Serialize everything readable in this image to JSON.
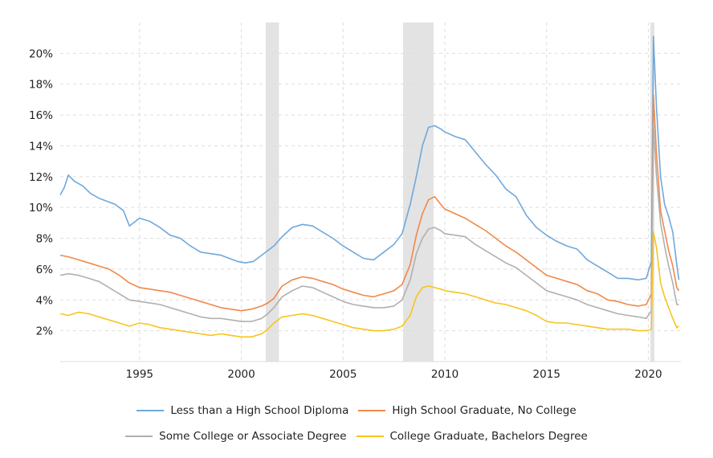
{
  "chart_data": {
    "type": "line",
    "title": "",
    "xlabel": "",
    "ylabel": "",
    "xlim": [
      1991.1,
      2021.6
    ],
    "ylim": [
      0,
      22
    ],
    "grid": true,
    "legend_position": "bottom",
    "x_ticks": [
      1995,
      2000,
      2005,
      2010,
      2015,
      2020
    ],
    "y_ticks": [
      2,
      4,
      6,
      8,
      10,
      12,
      14,
      16,
      18,
      20
    ],
    "y_tick_labels": [
      "2%",
      "4%",
      "6%",
      "8%",
      "10%",
      "12%",
      "14%",
      "16%",
      "18%",
      "20%"
    ],
    "x_tick_labels": [
      "1995",
      "2000",
      "2005",
      "2010",
      "2015",
      "2020"
    ],
    "recessions": [
      [
        2001.2,
        2001.85
      ],
      [
        2007.95,
        2009.45
      ],
      [
        2020.1,
        2020.3
      ]
    ],
    "series": [
      {
        "name": "Less than a High School Diploma",
        "color": "#6fa8dc",
        "x": [
          1991.1,
          1991.3,
          1991.5,
          1991.8,
          1992.2,
          1992.6,
          1993.0,
          1993.4,
          1993.8,
          1994.2,
          1994.5,
          1994.8,
          1995.0,
          1995.5,
          1996.0,
          1996.5,
          1997.0,
          1997.5,
          1998.0,
          1998.5,
          1999.0,
          1999.4,
          1999.8,
          2000.2,
          2000.6,
          2001.0,
          2001.3,
          2001.6,
          2002.0,
          2002.5,
          2003.0,
          2003.5,
          2004.0,
          2004.5,
          2005.0,
          2005.5,
          2006.0,
          2006.5,
          2007.0,
          2007.5,
          2007.9,
          2008.3,
          2008.6,
          2008.9,
          2009.2,
          2009.5,
          2009.8,
          2010.0,
          2010.5,
          2011.0,
          2011.5,
          2012.0,
          2012.5,
          2013.0,
          2013.5,
          2014.0,
          2014.5,
          2015.0,
          2015.5,
          2016.0,
          2016.5,
          2017.0,
          2017.5,
          2018.0,
          2018.5,
          2019.0,
          2019.5,
          2019.9,
          2020.15,
          2020.25,
          2020.4,
          2020.6,
          2020.8,
          2021.0,
          2021.2,
          2021.4,
          2021.5
        ],
        "y": [
          10.8,
          11.3,
          12.1,
          11.7,
          11.4,
          10.9,
          10.6,
          10.4,
          10.2,
          9.8,
          8.8,
          9.1,
          9.3,
          9.1,
          8.7,
          8.2,
          8.0,
          7.5,
          7.1,
          7.0,
          6.9,
          6.7,
          6.5,
          6.4,
          6.5,
          6.9,
          7.2,
          7.5,
          8.1,
          8.7,
          8.9,
          8.8,
          8.4,
          8.0,
          7.5,
          7.1,
          6.7,
          6.6,
          7.1,
          7.6,
          8.3,
          10.2,
          12.0,
          14.0,
          15.2,
          15.3,
          15.1,
          14.9,
          14.6,
          14.4,
          13.6,
          12.8,
          12.1,
          11.2,
          10.7,
          9.5,
          8.7,
          8.2,
          7.8,
          7.5,
          7.3,
          6.6,
          6.2,
          5.8,
          5.4,
          5.4,
          5.3,
          5.4,
          6.5,
          21.1,
          16.5,
          12.0,
          10.2,
          9.4,
          8.4,
          6.3,
          5.3
        ]
      },
      {
        "name": "High School Graduate, No College",
        "color": "#f0894a",
        "x": [
          1991.1,
          1991.5,
          1992.0,
          1992.5,
          1993.0,
          1993.5,
          1994.0,
          1994.5,
          1995.0,
          1995.5,
          1996.0,
          1996.5,
          1997.0,
          1997.5,
          1998.0,
          1998.5,
          1999.0,
          1999.5,
          2000.0,
          2000.5,
          2001.0,
          2001.3,
          2001.6,
          2002.0,
          2002.5,
          2003.0,
          2003.5,
          2004.0,
          2004.5,
          2005.0,
          2005.5,
          2006.0,
          2006.5,
          2007.0,
          2007.5,
          2007.9,
          2008.3,
          2008.6,
          2008.9,
          2009.2,
          2009.5,
          2009.8,
          2010.0,
          2010.5,
          2011.0,
          2011.5,
          2012.0,
          2012.5,
          2013.0,
          2013.5,
          2014.0,
          2014.5,
          2015.0,
          2015.5,
          2016.0,
          2016.5,
          2017.0,
          2017.5,
          2018.0,
          2018.5,
          2019.0,
          2019.5,
          2019.9,
          2020.15,
          2020.25,
          2020.4,
          2020.6,
          2020.8,
          2021.0,
          2021.2,
          2021.4,
          2021.5
        ],
        "y": [
          6.9,
          6.8,
          6.6,
          6.4,
          6.2,
          6.0,
          5.6,
          5.1,
          4.8,
          4.7,
          4.6,
          4.5,
          4.3,
          4.1,
          3.9,
          3.7,
          3.5,
          3.4,
          3.3,
          3.4,
          3.6,
          3.8,
          4.1,
          4.9,
          5.3,
          5.5,
          5.4,
          5.2,
          5.0,
          4.7,
          4.5,
          4.3,
          4.2,
          4.4,
          4.6,
          5.0,
          6.3,
          8.2,
          9.6,
          10.5,
          10.7,
          10.2,
          9.9,
          9.6,
          9.3,
          8.9,
          8.5,
          8.0,
          7.5,
          7.1,
          6.6,
          6.1,
          5.6,
          5.4,
          5.2,
          5.0,
          4.6,
          4.4,
          4.0,
          3.9,
          3.7,
          3.6,
          3.7,
          4.4,
          17.3,
          13.5,
          9.8,
          8.5,
          7.2,
          6.2,
          4.8,
          4.6
        ]
      },
      {
        "name": "Some College or Associate Degree",
        "color": "#b0b0b0",
        "x": [
          1991.1,
          1991.5,
          1992.0,
          1992.5,
          1993.0,
          1993.5,
          1994.0,
          1994.5,
          1995.0,
          1995.5,
          1996.0,
          1996.5,
          1997.0,
          1997.5,
          1998.0,
          1998.5,
          1999.0,
          1999.5,
          2000.0,
          2000.5,
          2001.0,
          2001.3,
          2001.6,
          2002.0,
          2002.5,
          2003.0,
          2003.5,
          2004.0,
          2004.5,
          2005.0,
          2005.5,
          2006.0,
          2006.5,
          2007.0,
          2007.5,
          2007.9,
          2008.3,
          2008.6,
          2008.9,
          2009.2,
          2009.5,
          2009.8,
          2010.0,
          2010.5,
          2011.0,
          2011.5,
          2012.0,
          2012.5,
          2013.0,
          2013.5,
          2014.0,
          2014.5,
          2015.0,
          2015.5,
          2016.0,
          2016.5,
          2017.0,
          2017.5,
          2018.0,
          2018.5,
          2019.0,
          2019.5,
          2019.9,
          2020.15,
          2020.25,
          2020.4,
          2020.6,
          2020.8,
          2021.0,
          2021.2,
          2021.4,
          2021.5
        ],
        "y": [
          5.6,
          5.7,
          5.6,
          5.4,
          5.2,
          4.8,
          4.4,
          4.0,
          3.9,
          3.8,
          3.7,
          3.5,
          3.3,
          3.1,
          2.9,
          2.8,
          2.8,
          2.7,
          2.6,
          2.6,
          2.8,
          3.1,
          3.5,
          4.2,
          4.6,
          4.9,
          4.8,
          4.5,
          4.2,
          3.9,
          3.7,
          3.6,
          3.5,
          3.5,
          3.6,
          4.0,
          5.3,
          7.0,
          8.0,
          8.6,
          8.7,
          8.5,
          8.3,
          8.2,
          8.1,
          7.6,
          7.2,
          6.8,
          6.4,
          6.1,
          5.6,
          5.1,
          4.6,
          4.4,
          4.2,
          4.0,
          3.7,
          3.5,
          3.3,
          3.1,
          3.0,
          2.9,
          2.8,
          3.3,
          15.4,
          12.0,
          9.0,
          7.5,
          6.2,
          5.1,
          3.7,
          3.7
        ]
      },
      {
        "name": "College Graduate, Bachelors Degree",
        "color": "#f7c51e",
        "x": [
          1991.1,
          1991.5,
          1992.0,
          1992.5,
          1993.0,
          1993.5,
          1994.0,
          1994.5,
          1995.0,
          1995.5,
          1996.0,
          1996.5,
          1997.0,
          1997.5,
          1998.0,
          1998.5,
          1999.0,
          1999.5,
          2000.0,
          2000.5,
          2001.0,
          2001.3,
          2001.6,
          2002.0,
          2002.5,
          2003.0,
          2003.5,
          2004.0,
          2004.5,
          2005.0,
          2005.5,
          2006.0,
          2006.5,
          2007.0,
          2007.5,
          2007.9,
          2008.3,
          2008.6,
          2008.9,
          2009.2,
          2009.5,
          2009.8,
          2010.0,
          2010.5,
          2011.0,
          2011.5,
          2012.0,
          2012.5,
          2013.0,
          2013.5,
          2014.0,
          2014.5,
          2015.0,
          2015.5,
          2016.0,
          2016.5,
          2017.0,
          2017.5,
          2018.0,
          2018.5,
          2019.0,
          2019.5,
          2019.9,
          2020.15,
          2020.25,
          2020.4,
          2020.6,
          2020.8,
          2021.0,
          2021.2,
          2021.4,
          2021.5
        ],
        "y": [
          3.1,
          3.0,
          3.2,
          3.1,
          2.9,
          2.7,
          2.5,
          2.3,
          2.5,
          2.4,
          2.2,
          2.1,
          2.0,
          1.9,
          1.8,
          1.7,
          1.8,
          1.7,
          1.6,
          1.6,
          1.8,
          2.1,
          2.5,
          2.9,
          3.0,
          3.1,
          3.0,
          2.8,
          2.6,
          2.4,
          2.2,
          2.1,
          2.0,
          2.0,
          2.1,
          2.3,
          3.0,
          4.2,
          4.8,
          4.9,
          4.8,
          4.7,
          4.6,
          4.5,
          4.4,
          4.2,
          4.0,
          3.8,
          3.7,
          3.5,
          3.3,
          3.0,
          2.6,
          2.5,
          2.5,
          2.4,
          2.3,
          2.2,
          2.1,
          2.1,
          2.1,
          2.0,
          2.0,
          2.1,
          8.4,
          7.4,
          5.1,
          4.2,
          3.5,
          2.8,
          2.2,
          2.3
        ]
      }
    ]
  }
}
